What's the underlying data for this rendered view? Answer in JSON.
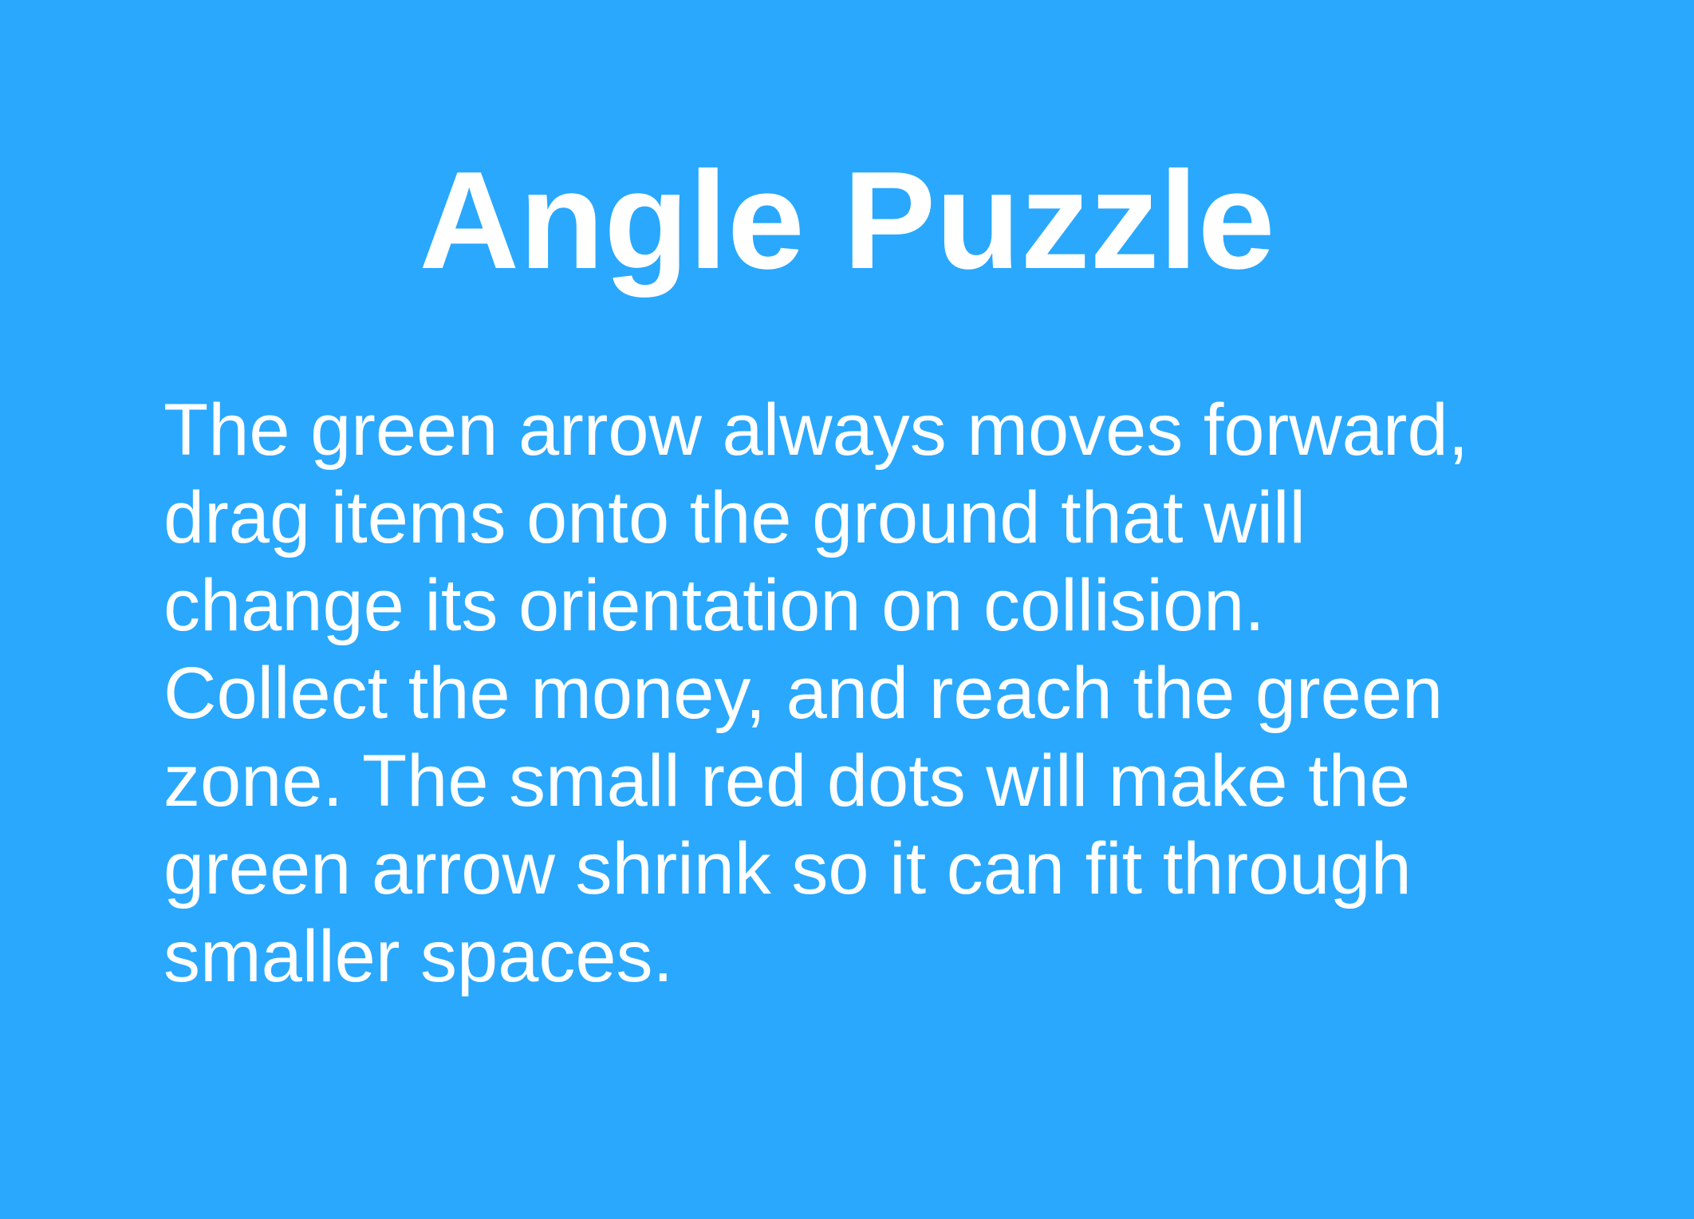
{
  "screen": {
    "background_color": "#29a8fe",
    "text_color": "#ffffff"
  },
  "title": "Angle Puzzle",
  "instructions": [
    "The green arrow always moves forward,",
    "drag items onto the ground that will",
    "change its orientation on collision.",
    "Collect the money, and reach the green",
    "zone. The small red dots will make the",
    "green arrow shrink so it can fit through",
    "smaller spaces."
  ]
}
